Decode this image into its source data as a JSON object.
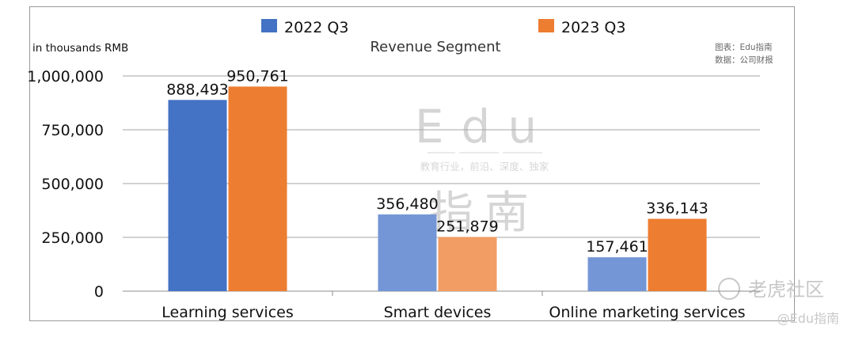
{
  "chart_data": {
    "type": "bar",
    "title": "Revenue Segment",
    "unit_label": "in thousands RMB",
    "categories": [
      "Learning services",
      "Smart devices",
      "Online marketing services"
    ],
    "series": [
      {
        "name": "2022 Q3",
        "values": [
          888493,
          356480,
          157461
        ],
        "color": "#4472C4",
        "light_color": "#7496D6"
      },
      {
        "name": "2023 Q3",
        "values": [
          950761,
          251879,
          336143
        ],
        "color": "#ED7D31",
        "light_color": "#F29D63"
      }
    ],
    "data_labels": [
      [
        "888,493",
        "356,480",
        "157,461"
      ],
      [
        "950,761",
        "251,879",
        "336,143"
      ]
    ],
    "ylim": [
      0,
      1000000
    ],
    "yticks": [
      0,
      250000,
      500000,
      750000,
      1000000
    ],
    "ytick_labels": [
      "0",
      "250,000",
      "500,000",
      "750,000",
      "1,000,000"
    ],
    "grid": true,
    "legend_position": "top"
  },
  "source": {
    "chart_by": "图表：Edu指南",
    "data_from": "数据：公司财报"
  },
  "watermark": {
    "big_text": "Edu",
    "tagline": "教育行业，前沿、深度、独家",
    "cn_text": "指南"
  },
  "corner_marks": {
    "forum": "老虎社区",
    "handle": "@Edu指南"
  }
}
